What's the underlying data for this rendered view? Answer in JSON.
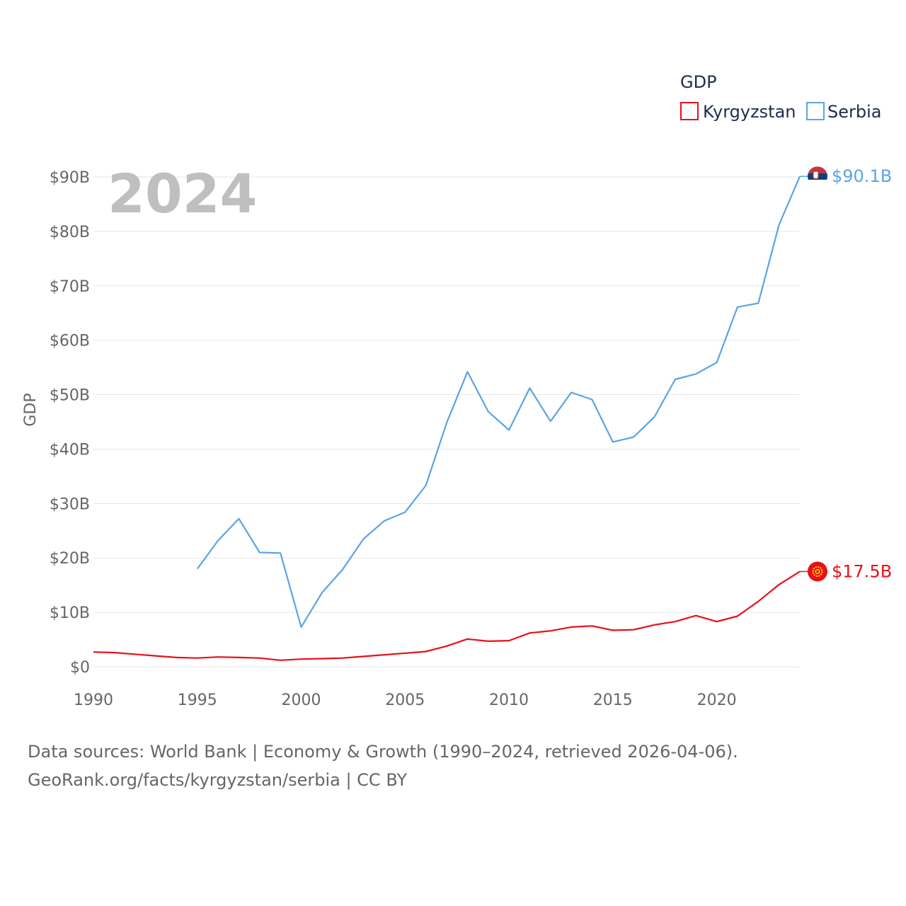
{
  "chart_data": {
    "type": "line",
    "title": "",
    "xlabel": "",
    "ylabel": "GDP",
    "watermark_year": "2024",
    "xlim": [
      1990,
      2024
    ],
    "ylim": [
      0,
      90
    ],
    "x_ticks": [
      1990,
      1995,
      2000,
      2005,
      2010,
      2015,
      2020
    ],
    "x_tick_labels": [
      "1990",
      "1995",
      "2000",
      "2005",
      "2010",
      "2015",
      "2020"
    ],
    "y_ticks": [
      0,
      10,
      20,
      30,
      40,
      50,
      60,
      70,
      80,
      90
    ],
    "y_tick_labels": [
      "$0",
      "$10B",
      "$20B",
      "$30B",
      "$40B",
      "$50B",
      "$60B",
      "$70B",
      "$80B",
      "$90B"
    ],
    "legend": {
      "title": "GDP",
      "position": "top-right"
    },
    "series": [
      {
        "name": "Kyrgyzstan",
        "color": "#e8101a",
        "end_label": "$17.5B",
        "points": [
          [
            1990,
            2.7
          ],
          [
            1991,
            2.6
          ],
          [
            1992,
            2.3
          ],
          [
            1993,
            2.0
          ],
          [
            1994,
            1.7
          ],
          [
            1995,
            1.6
          ],
          [
            1996,
            1.8
          ],
          [
            1997,
            1.7
          ],
          [
            1998,
            1.6
          ],
          [
            1999,
            1.2
          ],
          [
            2000,
            1.4
          ],
          [
            2001,
            1.5
          ],
          [
            2002,
            1.6
          ],
          [
            2003,
            1.9
          ],
          [
            2004,
            2.2
          ],
          [
            2005,
            2.5
          ],
          [
            2006,
            2.8
          ],
          [
            2007,
            3.8
          ],
          [
            2008,
            5.1
          ],
          [
            2009,
            4.7
          ],
          [
            2010,
            4.8
          ],
          [
            2011,
            6.2
          ],
          [
            2012,
            6.6
          ],
          [
            2013,
            7.3
          ],
          [
            2014,
            7.5
          ],
          [
            2015,
            6.7
          ],
          [
            2016,
            6.8
          ],
          [
            2017,
            7.7
          ],
          [
            2018,
            8.3
          ],
          [
            2019,
            9.4
          ],
          [
            2020,
            8.3
          ],
          [
            2021,
            9.3
          ],
          [
            2022,
            12.0
          ],
          [
            2023,
            15.1
          ],
          [
            2024,
            17.5
          ]
        ]
      },
      {
        "name": "Serbia",
        "color": "#5ba3e6",
        "end_label": "$90.1B",
        "points": [
          [
            1995,
            18.0
          ],
          [
            1996,
            23.2
          ],
          [
            1997,
            27.2
          ],
          [
            1998,
            21.0
          ],
          [
            1999,
            20.9
          ],
          [
            2000,
            7.3
          ],
          [
            2001,
            13.6
          ],
          [
            2002,
            17.9
          ],
          [
            2003,
            23.5
          ],
          [
            2004,
            26.8
          ],
          [
            2005,
            28.4
          ],
          [
            2006,
            33.3
          ],
          [
            2007,
            44.8
          ],
          [
            2008,
            54.2
          ],
          [
            2009,
            46.9
          ],
          [
            2010,
            43.5
          ],
          [
            2011,
            51.2
          ],
          [
            2012,
            45.1
          ],
          [
            2013,
            50.4
          ],
          [
            2014,
            49.1
          ],
          [
            2015,
            41.3
          ],
          [
            2016,
            42.2
          ],
          [
            2017,
            45.9
          ],
          [
            2018,
            52.8
          ],
          [
            2019,
            53.8
          ],
          [
            2020,
            55.9
          ],
          [
            2021,
            66.1
          ],
          [
            2022,
            66.8
          ],
          [
            2023,
            81.2
          ],
          [
            2024,
            90.1
          ]
        ]
      }
    ]
  },
  "footer": {
    "line1": "Data sources: World Bank | Economy & Growth (1990–2024, retrieved 2026-04-06).",
    "line2": "GeoRank.org/facts/kyrgyzstan/serbia | CC BY"
  }
}
